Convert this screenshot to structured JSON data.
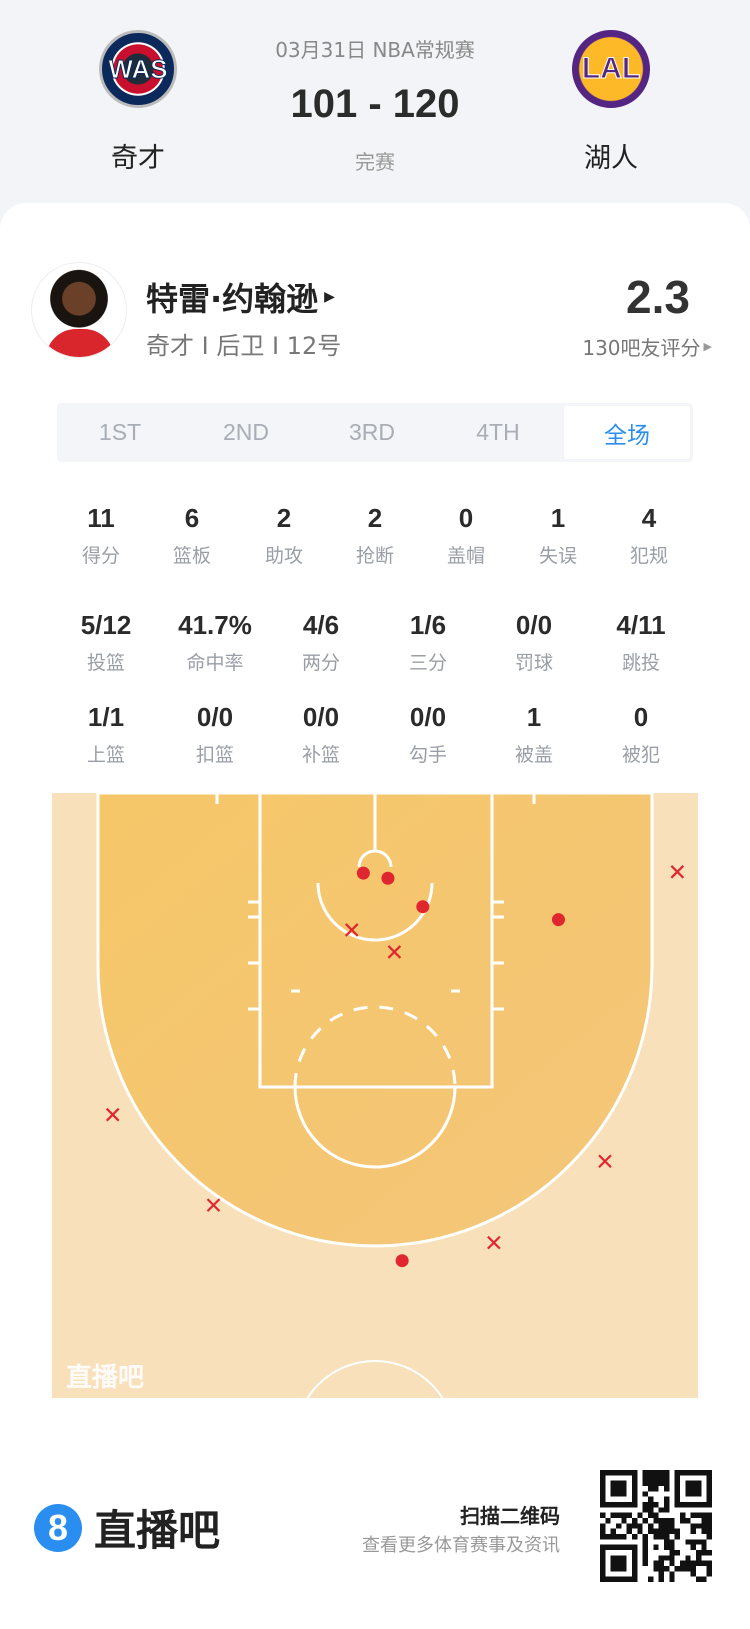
{
  "match": {
    "date_league": "03月31日 NBA常规赛",
    "score": "101 - 120",
    "status": "完赛",
    "home": {
      "abbr": "WAS",
      "name": "奇才",
      "color": "#c8102e",
      "navy": "#0b2a5b"
    },
    "away": {
      "abbr": "LAL",
      "name": "湖人",
      "color": "#552583",
      "gold": "#fdb927"
    }
  },
  "player": {
    "name": "特雷·约翰逊",
    "info": "奇才 I 后卫 I 12号",
    "rating": "2.3",
    "rating_label": "130吧友评分"
  },
  "tabs": [
    {
      "label": "1ST"
    },
    {
      "label": "2ND"
    },
    {
      "label": "3RD"
    },
    {
      "label": "4TH"
    },
    {
      "label": "全场",
      "active": true
    }
  ],
  "stats_row1": [
    {
      "v": "11",
      "l": "得分"
    },
    {
      "v": "6",
      "l": "篮板"
    },
    {
      "v": "2",
      "l": "助攻"
    },
    {
      "v": "2",
      "l": "抢断"
    },
    {
      "v": "0",
      "l": "盖帽"
    },
    {
      "v": "1",
      "l": "失误"
    },
    {
      "v": "4",
      "l": "犯规"
    }
  ],
  "stats_row2": [
    {
      "v": "5/12",
      "l": "投篮"
    },
    {
      "v": "41.7%",
      "l": "命中率"
    },
    {
      "v": "4/6",
      "l": "两分"
    },
    {
      "v": "1/6",
      "l": "三分"
    },
    {
      "v": "0/0",
      "l": "罚球"
    },
    {
      "v": "4/11",
      "l": "跳投"
    }
  ],
  "stats_row3": [
    {
      "v": "1/1",
      "l": "上篮"
    },
    {
      "v": "0/0",
      "l": "扣篮"
    },
    {
      "v": "0/0",
      "l": "补篮"
    },
    {
      "v": "0/0",
      "l": "勾手"
    },
    {
      "v": "1",
      "l": "被盖"
    },
    {
      "v": "0",
      "l": "被犯"
    }
  ],
  "shot_chart": {
    "units": "feet from court center line (x) and baseline (y)",
    "made_color": "#e0262f",
    "miss_color": "#e0262f",
    "shots": [
      {
        "x": -0.9,
        "y": 6.2,
        "made": true
      },
      {
        "x": 1.0,
        "y": 6.6,
        "made": true
      },
      {
        "x": 3.7,
        "y": 8.8,
        "made": true
      },
      {
        "x": 14.2,
        "y": 9.8,
        "made": true
      },
      {
        "x": 2.1,
        "y": 36.2,
        "made": true
      },
      {
        "x": 23.4,
        "y": 6.1,
        "made": false
      },
      {
        "x": -1.8,
        "y": 10.6,
        "made": false
      },
      {
        "x": 1.5,
        "y": 12.3,
        "made": false
      },
      {
        "x": -20.3,
        "y": 24.9,
        "made": false
      },
      {
        "x": -12.5,
        "y": 31.9,
        "made": false
      },
      {
        "x": 17.8,
        "y": 28.5,
        "made": false
      },
      {
        "x": 9.2,
        "y": 34.8,
        "made": false
      }
    ],
    "watermark": "直播吧"
  },
  "footer": {
    "brand": "直播吧",
    "brand_icon": "8",
    "scan_title": "扫描二维码",
    "scan_sub": "查看更多体育赛事及资讯"
  },
  "colors": {
    "accent": "#2a8ef0",
    "court_inner": "#f5c56e",
    "court_outer": "#f8e0bb"
  }
}
